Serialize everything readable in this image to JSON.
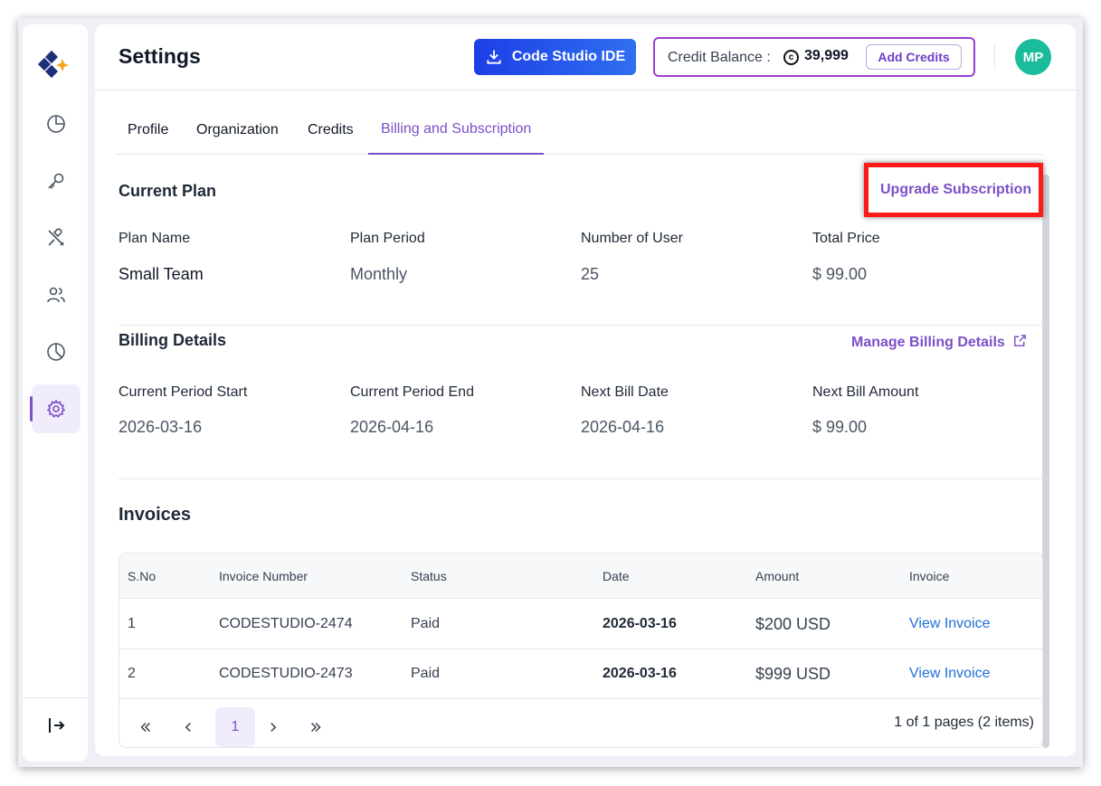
{
  "header": {
    "title": "Settings",
    "ide_button_label": "Code Studio IDE",
    "credit_label": "Credit Balance :",
    "credit_value": "39,999",
    "add_credits_label": "Add Credits",
    "avatar_initials": "MP"
  },
  "sidebar": {
    "items": [
      {
        "name": "dashboard",
        "icon": "pie-chart-icon"
      },
      {
        "name": "keys",
        "icon": "key-icon"
      },
      {
        "name": "tools",
        "icon": "tools-icon"
      },
      {
        "name": "users",
        "icon": "users-icon"
      },
      {
        "name": "usage",
        "icon": "pie-chart-icon"
      },
      {
        "name": "settings",
        "icon": "gear-icon",
        "active": true
      }
    ],
    "logout_icon": "logout-icon"
  },
  "tabs": [
    {
      "label": "Profile"
    },
    {
      "label": "Organization"
    },
    {
      "label": "Credits"
    },
    {
      "label": "Billing and Subscription",
      "active": true
    }
  ],
  "current_plan": {
    "title": "Current Plan",
    "upgrade_label": "Upgrade Subscription",
    "fields": [
      {
        "label": "Plan Name",
        "value": "Small Team"
      },
      {
        "label": "Plan Period",
        "value": "Monthly"
      },
      {
        "label": "Number of User",
        "value": "25"
      },
      {
        "label": "Total Price",
        "value": "$ 99.00"
      }
    ]
  },
  "billing": {
    "title": "Billing Details",
    "manage_label": "Manage Billing Details",
    "fields": [
      {
        "label": "Current Period Start",
        "value": "2026-03-16"
      },
      {
        "label": "Current Period End",
        "value": "2026-04-16"
      },
      {
        "label": "Next Bill Date",
        "value": "2026-04-16"
      },
      {
        "label": "Next Bill Amount",
        "value": "$ 99.00"
      }
    ]
  },
  "invoices": {
    "title": "Invoices",
    "columns": [
      "S.No",
      "Invoice Number",
      "Status",
      "Date",
      "Amount",
      "Invoice"
    ],
    "rows": [
      {
        "sno": "1",
        "number": "CODESTUDIO-2474",
        "status": "Paid",
        "date": "2026-03-16",
        "amount": "$200 USD",
        "link": "View Invoice"
      },
      {
        "sno": "2",
        "number": "CODESTUDIO-2473",
        "status": "Paid",
        "date": "2026-03-16",
        "amount": "$999 USD",
        "link": "View Invoice"
      }
    ],
    "pagination": {
      "current_page": "1",
      "info": "1 of 1 pages (2 items)"
    }
  },
  "colors": {
    "accent": "#7c4fc9",
    "ide_blue": "#1d3fe6",
    "avatar": "#1abc9c",
    "highlight": "#ff1a1a",
    "link_blue": "#1e6fd9"
  }
}
